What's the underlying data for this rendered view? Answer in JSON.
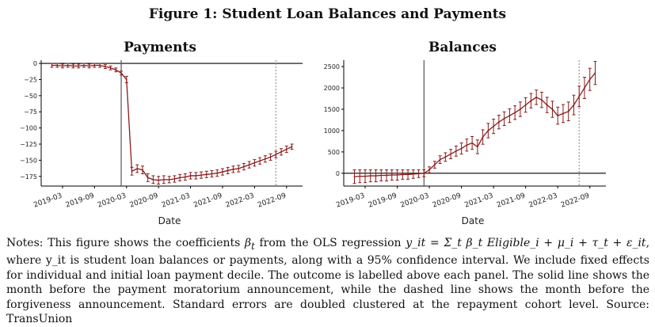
{
  "figure_title": "Figure 1: Student Loan Balances and Payments",
  "notes": {
    "prefix": "Notes: This figure shows the coefficients ",
    "beta": "β",
    "beta_sub": "t",
    "mid": " from the OLS regression ",
    "equation": "y_it = Σ_t β_t Eligible_i + μ_i + τ_t + ε_it",
    "suffix": ", where y_it is student loan balances or payments, along with a 95% confidence interval. We include fixed effects for individual and initial loan payment decile. The outcome is labelled above each panel. The solid line shows the month before the payment moratorium announcement, while the dashed line shows the month before the forgiveness announcement. Standard errors are doubled clustered at the repayment cohort level. Source: TransUnion"
  },
  "colors": {
    "series": "#8b1a1a",
    "axis": "#000000",
    "solid_line": "#555555",
    "dashed_line": "#999999"
  },
  "chart_data": [
    {
      "type": "line",
      "title": "Payments",
      "xlabel": "Date",
      "ylabel": "",
      "ylim": [
        -190,
        5
      ],
      "xticks": [
        "2019-03",
        "2019-09",
        "2020-03",
        "2020-09",
        "2021-03",
        "2021-09",
        "2022-03",
        "2022-09"
      ],
      "yticks": [
        0,
        -25,
        -50,
        -75,
        -100,
        -125,
        -150,
        -175
      ],
      "solid_vline": "2020-02",
      "dashed_vline": "2022-07",
      "hline": 0,
      "series": [
        {
          "months": [
            "2019-01",
            "2019-02",
            "2019-03",
            "2019-04",
            "2019-05",
            "2019-06",
            "2019-07",
            "2019-08",
            "2019-09",
            "2019-10",
            "2019-11",
            "2019-12",
            "2020-01",
            "2020-02",
            "2020-03",
            "2020-04",
            "2020-05",
            "2020-06",
            "2020-07",
            "2020-08",
            "2020-09",
            "2020-10",
            "2020-11",
            "2020-12",
            "2021-01",
            "2021-02",
            "2021-03",
            "2021-04",
            "2021-05",
            "2021-06",
            "2021-07",
            "2021-08",
            "2021-09",
            "2021-10",
            "2021-11",
            "2021-12",
            "2022-01",
            "2022-02",
            "2022-03",
            "2022-04",
            "2022-05",
            "2022-06",
            "2022-07",
            "2022-08",
            "2022-09",
            "2022-10"
          ],
          "values": [
            -3,
            -3,
            -4,
            -3,
            -4,
            -4,
            -3,
            -4,
            -3,
            -3,
            -5,
            -7,
            -10,
            -15,
            -25,
            -167,
            -163,
            -165,
            -177,
            -180,
            -181,
            -180,
            -180,
            -179,
            -177,
            -176,
            -174,
            -174,
            -173,
            -172,
            -171,
            -170,
            -168,
            -166,
            -164,
            -163,
            -160,
            -157,
            -154,
            -151,
            -148,
            -145,
            -141,
            -137,
            -133,
            -129
          ],
          "ci": [
            3,
            3,
            3,
            3,
            3,
            3,
            3,
            3,
            3,
            3,
            3,
            3,
            3,
            3,
            5,
            6,
            6,
            6,
            6,
            6,
            6,
            6,
            5,
            5,
            5,
            5,
            5,
            5,
            5,
            5,
            5,
            5,
            5,
            5,
            5,
            5,
            5,
            5,
            5,
            5,
            5,
            5,
            5,
            5,
            5,
            4
          ]
        }
      ]
    },
    {
      "type": "line",
      "title": "Balances",
      "xlabel": "Date",
      "ylabel": "",
      "ylim": [
        -300,
        2650
      ],
      "xticks": [
        "2019-03",
        "2019-09",
        "2020-03",
        "2020-09",
        "2021-03",
        "2021-09",
        "2022-03",
        "2022-09"
      ],
      "yticks": [
        0,
        500,
        1000,
        1500,
        2000,
        2500
      ],
      "solid_vline": "2020-02",
      "dashed_vline": "2022-07",
      "hline": 0,
      "series": [
        {
          "months": [
            "2019-01",
            "2019-02",
            "2019-03",
            "2019-04",
            "2019-05",
            "2019-06",
            "2019-07",
            "2019-08",
            "2019-09",
            "2019-10",
            "2019-11",
            "2019-12",
            "2020-01",
            "2020-02",
            "2020-03",
            "2020-04",
            "2020-05",
            "2020-06",
            "2020-07",
            "2020-08",
            "2020-09",
            "2020-10",
            "2020-11",
            "2020-12",
            "2021-01",
            "2021-02",
            "2021-03",
            "2021-04",
            "2021-05",
            "2021-06",
            "2021-07",
            "2021-08",
            "2021-09",
            "2021-10",
            "2021-11",
            "2021-12",
            "2022-01",
            "2022-02",
            "2022-03",
            "2022-04",
            "2022-05",
            "2022-06",
            "2022-07",
            "2022-08",
            "2022-09",
            "2022-10"
          ],
          "values": [
            -80,
            -70,
            -70,
            -60,
            -60,
            -50,
            -50,
            -40,
            -40,
            -30,
            -30,
            -20,
            -10,
            0,
            80,
            200,
            320,
            380,
            450,
            520,
            580,
            660,
            710,
            620,
            850,
            1000,
            1100,
            1200,
            1280,
            1350,
            1420,
            1500,
            1600,
            1700,
            1780,
            1720,
            1600,
            1500,
            1350,
            1400,
            1450,
            1600,
            1800,
            2000,
            2200,
            2350
          ],
          "ci": [
            160,
            150,
            150,
            140,
            140,
            130,
            130,
            120,
            120,
            110,
            110,
            100,
            90,
            80,
            70,
            80,
            90,
            100,
            110,
            120,
            130,
            140,
            150,
            160,
            170,
            170,
            170,
            160,
            160,
            160,
            160,
            170,
            170,
            170,
            170,
            180,
            180,
            190,
            200,
            210,
            220,
            230,
            240,
            250,
            260,
            270
          ]
        }
      ]
    }
  ]
}
